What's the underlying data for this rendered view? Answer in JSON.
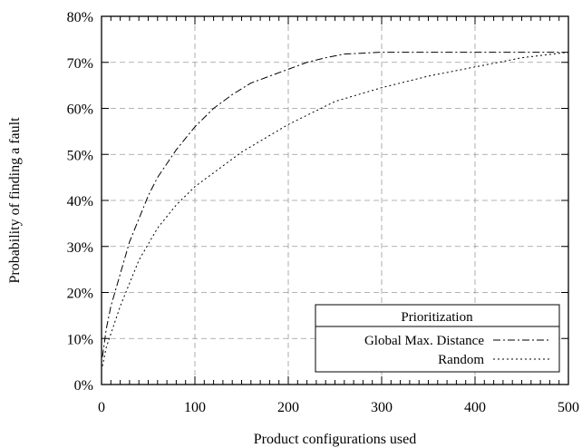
{
  "chart_data": {
    "type": "line",
    "title": "",
    "xlabel": "Product configurations used",
    "ylabel": "Probability of finding a fault",
    "xlim": [
      0,
      500
    ],
    "ylim": [
      0,
      80
    ],
    "x_ticks": [
      0,
      100,
      200,
      300,
      400,
      500
    ],
    "y_ticks": [
      0,
      10,
      20,
      30,
      40,
      50,
      60,
      70,
      80
    ],
    "x_tick_labels": [
      "0",
      "100",
      "200",
      "300",
      "400",
      "500"
    ],
    "y_tick_labels": [
      "0%",
      "10%",
      "20%",
      "30%",
      "40%",
      "50%",
      "60%",
      "70%",
      "80%"
    ],
    "grid": true,
    "legend": {
      "title": "Prioritization",
      "position": "bottom-right"
    },
    "series": [
      {
        "name": "Global Max. Distance",
        "style": "dash-dot",
        "x": [
          1,
          5,
          10,
          20,
          30,
          40,
          50,
          60,
          70,
          80,
          100,
          120,
          140,
          160,
          180,
          200,
          220,
          240,
          260,
          280,
          300,
          350,
          400,
          450,
          500
        ],
        "y": [
          6,
          12,
          17,
          24,
          31,
          36,
          41,
          45,
          48,
          51,
          56,
          60,
          63,
          65.5,
          67,
          68.5,
          70,
          71,
          71.8,
          72,
          72.2,
          72.2,
          72.2,
          72.2,
          72.2
        ]
      },
      {
        "name": "Random",
        "style": "dotted",
        "x": [
          1,
          5,
          10,
          20,
          30,
          40,
          50,
          60,
          80,
          100,
          120,
          150,
          200,
          250,
          300,
          350,
          400,
          450,
          500
        ],
        "y": [
          4,
          8,
          11,
          17,
          22,
          27,
          30.5,
          34,
          39,
          43,
          46,
          50.5,
          56.5,
          61.5,
          64.5,
          67,
          69,
          71,
          72.2
        ]
      }
    ]
  }
}
